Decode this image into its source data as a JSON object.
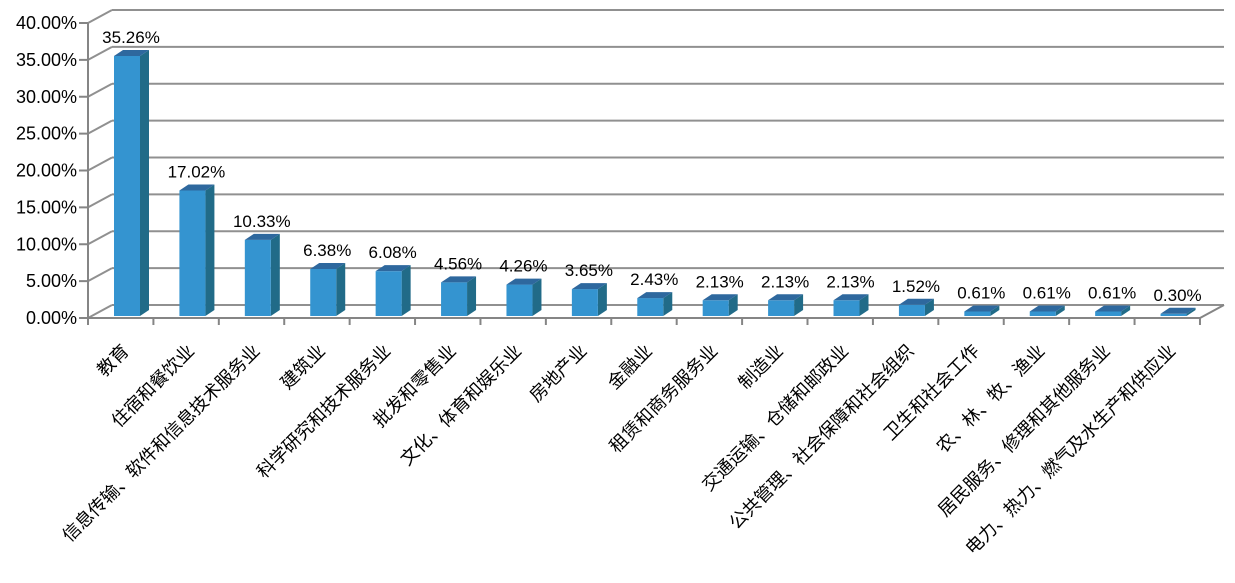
{
  "chart_data": {
    "type": "bar",
    "style": "3d-column",
    "title": "",
    "xlabel": "",
    "ylabel": "",
    "categories": [
      "教育",
      "住宿和餐饮业",
      "信息传输、软件和信息技术服务业",
      "建筑业",
      "科学研究和技术服务业",
      "批发和零售业",
      "文化、体育和娱乐业",
      "房地产业",
      "金融业",
      "租赁和商务服务业",
      "制造业",
      "交通运输、仓储和邮政业",
      "公共管理、社会保障和社会组织",
      "卫生和社会工作",
      "农、林、牧、渔业",
      "居民服务、修理和其他服务业",
      "电力、热力、燃气及水生产和供应业"
    ],
    "values": [
      35.26,
      17.02,
      10.33,
      6.38,
      6.08,
      4.56,
      4.26,
      3.65,
      2.43,
      2.13,
      2.13,
      2.13,
      1.52,
      0.61,
      0.61,
      0.61,
      0.3
    ],
    "data_labels": [
      "35.26%",
      "17.02%",
      "10.33%",
      "6.38%",
      "6.08%",
      "4.56%",
      "4.26%",
      "3.65%",
      "2.43%",
      "2.13%",
      "2.13%",
      "2.13%",
      "1.52%",
      "0.61%",
      "0.61%",
      "0.61%",
      "0.30%"
    ],
    "ylim": [
      0,
      40
    ],
    "ytick_step": 5,
    "ytick_labels": [
      "0.00%",
      "5.00%",
      "10.00%",
      "15.00%",
      "20.00%",
      "25.00%",
      "30.00%",
      "35.00%",
      "40.00%"
    ],
    "grid": true,
    "legend": null,
    "colors": {
      "bar_front": "#3494d0",
      "bar_top": "#2e689e",
      "bar_side": "#216b88",
      "gridline": "#909090",
      "axis": "#858585",
      "text": "#000000"
    }
  }
}
